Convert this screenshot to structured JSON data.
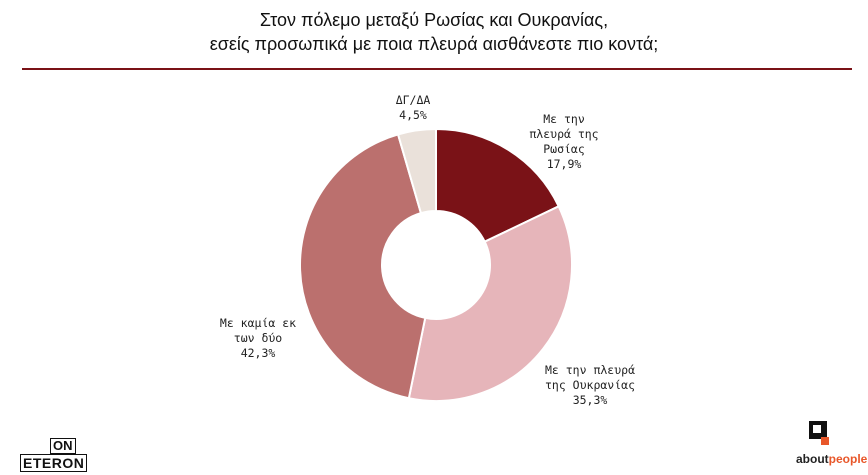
{
  "title": {
    "line1": "Στον πόλεμο μεταξύ Ρωσίας και Ουκρανίας,",
    "line2": "εσείς προσωπικά με ποια πλευρά αισθάνεστε πιο κοντά;"
  },
  "chart_data": {
    "type": "pie",
    "donut": true,
    "title": "Στον πόλεμο μεταξύ Ρωσίας και Ουκρανίας, εσείς προσωπικά με ποια πλευρά αισθάνεστε πιο κοντά;",
    "slices": [
      {
        "label_lines": [
          "Με την",
          "πλευρά της",
          "Ρωσίας"
        ],
        "value": 17.9,
        "value_label": "17,9%",
        "color": "#7a1217"
      },
      {
        "label_lines": [
          "Με την πλευρά",
          "της Ουκρανίας"
        ],
        "value": 35.3,
        "value_label": "35,3%",
        "color": "#e6b5ba"
      },
      {
        "label_lines": [
          "Με καμία εκ",
          "των δύο"
        ],
        "value": 42.3,
        "value_label": "42,3%",
        "color": "#bb706e"
      },
      {
        "label_lines": [
          "ΔΓ/ΔΑ"
        ],
        "value": 4.5,
        "value_label": "4,5%",
        "color": "#eae1da"
      }
    ]
  },
  "logos": {
    "onet_top": "ON",
    "onet_bottom": "ETERON",
    "about_word_1": "about",
    "about_word_2": "people",
    "accent": "#e8572a"
  },
  "rule_color": "#7a1217"
}
